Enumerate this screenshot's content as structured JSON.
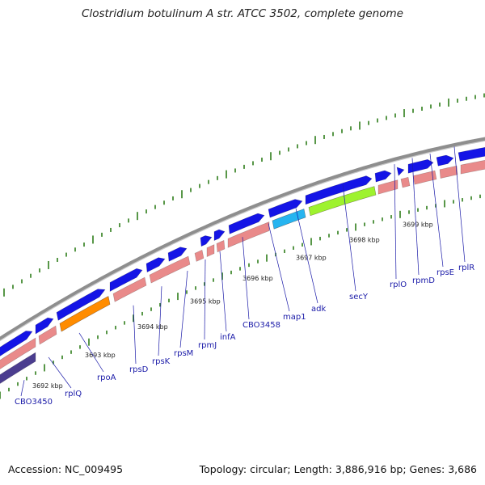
{
  "title": "Clostridium botulinum A str. ATCC 3502, complete genome",
  "accession": "Accession: NC_009495",
  "summary": "Topology: circular; Length: 3,886,916 bp; Genes: 3,686",
  "kbp_labels": [
    "3692 kbp",
    "3693 kbp",
    "3694 kbp",
    "3695 kbp",
    "3696 kbp",
    "3697 kbp",
    "3698 kbp",
    "3699 kbp"
  ],
  "gene_labels": [
    "CBO3450",
    "rplQ",
    "rpoA",
    "rpsD",
    "rpsK",
    "rpsM",
    "rpmJ",
    "infA",
    "CBO3458",
    "map1",
    "adk",
    "secY",
    "rplO",
    "rpmD",
    "rpsE",
    "rplR"
  ],
  "colors": {
    "backbone": "#8e8e8e",
    "forward_cds": "#1414e6",
    "reverse_cds": "#e98a8a",
    "gene_label": "#1a1aa8",
    "tick_green": "#2e7d1a",
    "rpoA": "#ff8c00",
    "map1": "#26b4f0",
    "secY": "#9ef22e",
    "CBO3450": "#4b3d8f"
  }
}
